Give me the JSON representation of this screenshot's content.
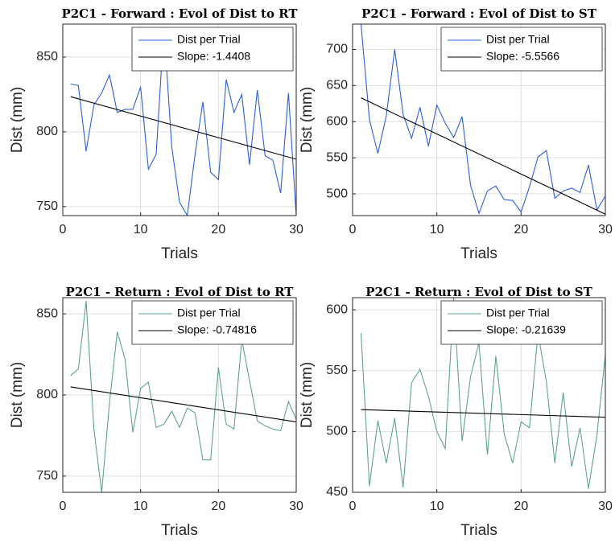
{
  "chart_data": [
    {
      "type": "line",
      "title": "P2C1 - Forward : Evol of Dist to RT",
      "xlabel": "Trials",
      "ylabel": "Dist (mm)",
      "x": [
        1,
        2,
        3,
        4,
        5,
        6,
        7,
        8,
        9,
        10,
        11,
        12,
        13,
        14,
        15,
        16,
        17,
        18,
        19,
        20,
        21,
        22,
        23,
        24,
        25,
        26,
        27,
        28,
        29,
        30
      ],
      "xlim": [
        0,
        30
      ],
      "xticks": [
        0,
        10,
        20,
        30
      ],
      "ylim": [
        744,
        872
      ],
      "yticks": [
        750,
        800,
        850
      ],
      "grid": true,
      "legend": "top-right",
      "series": [
        {
          "name": "Dist per Trial",
          "color": "#2b5fd9",
          "values": [
            832,
            831,
            787,
            818,
            826,
            838,
            813,
            815,
            815,
            830,
            775,
            785,
            870,
            790,
            753,
            744,
            785,
            820,
            773,
            768,
            835,
            813,
            825,
            778,
            828,
            784,
            781,
            759,
            826,
            744
          ]
        },
        {
          "name": "Slope: -1.4408",
          "color": "#000000",
          "x": [
            1,
            30
          ],
          "values": [
            823.5,
            781.7
          ]
        }
      ]
    },
    {
      "type": "line",
      "title": "P2C1 - Forward : Evol of Dist to ST",
      "xlabel": "Trials",
      "ylabel": "Dist (mm)",
      "x": [
        1,
        2,
        3,
        4,
        5,
        6,
        7,
        8,
        9,
        10,
        11,
        12,
        13,
        14,
        15,
        16,
        17,
        18,
        19,
        20,
        21,
        22,
        23,
        24,
        25,
        26,
        27,
        28,
        29,
        30
      ],
      "xlim": [
        0,
        30
      ],
      "xticks": [
        0,
        10,
        20,
        30
      ],
      "ylim": [
        470,
        735
      ],
      "yticks": [
        500,
        550,
        600,
        650,
        700
      ],
      "grid": true,
      "legend": "top-right",
      "series": [
        {
          "name": "Dist per Trial",
          "color": "#2b5fd9",
          "values": [
            735,
            603,
            556,
            608,
            700,
            610,
            577,
            620,
            566,
            623,
            598,
            578,
            607,
            512,
            473,
            504,
            511,
            492,
            491,
            475,
            510,
            551,
            560,
            494,
            504,
            508,
            502,
            540,
            478,
            497
          ]
        },
        {
          "name": "Slope: -5.5566",
          "color": "#000000",
          "x": [
            1,
            30
          ],
          "values": [
            633,
            472
          ]
        }
      ]
    },
    {
      "type": "line",
      "title": "P2C1 - Return : Evol of Dist to RT",
      "xlabel": "Trials",
      "ylabel": "Dist (mm)",
      "x": [
        1,
        2,
        3,
        4,
        5,
        6,
        7,
        8,
        9,
        10,
        11,
        12,
        13,
        14,
        15,
        16,
        17,
        18,
        19,
        20,
        21,
        22,
        23,
        24,
        25,
        26,
        27,
        28,
        29,
        30
      ],
      "xlim": [
        0,
        30
      ],
      "xticks": [
        0,
        10,
        20,
        30
      ],
      "ylim": [
        740,
        860
      ],
      "yticks": [
        750,
        800,
        850
      ],
      "grid": true,
      "legend": "top-right",
      "series": [
        {
          "name": "Dist per Trial",
          "color": "#5fa58a",
          "values": [
            812,
            816,
            858,
            779,
            740,
            795,
            839,
            822,
            777,
            804,
            808,
            780,
            782,
            790,
            780,
            792,
            789,
            760,
            760,
            817,
            782,
            779,
            834,
            809,
            784,
            781,
            779,
            778,
            796,
            785
          ]
        },
        {
          "name": "Slope: -0.74816",
          "color": "#000000",
          "x": [
            1,
            30
          ],
          "values": [
            805,
            783.4
          ]
        }
      ]
    },
    {
      "type": "line",
      "title": "P2C1 - Return : Evol of Dist to ST",
      "xlabel": "Trials",
      "ylabel": "Dist (mm)",
      "x": [
        1,
        2,
        3,
        4,
        5,
        6,
        7,
        8,
        9,
        10,
        11,
        12,
        13,
        14,
        15,
        16,
        17,
        18,
        19,
        20,
        21,
        22,
        23,
        24,
        25,
        26,
        27,
        28,
        29,
        30
      ],
      "xlim": [
        0,
        30
      ],
      "xticks": [
        0,
        10,
        20,
        30
      ],
      "ylim": [
        450,
        610
      ],
      "yticks": [
        450,
        500,
        550,
        600
      ],
      "grid": true,
      "legend": "top-right",
      "series": [
        {
          "name": "Dist per Trial",
          "color": "#5fa58a",
          "values": [
            581,
            455,
            509,
            474,
            511,
            454,
            540,
            551,
            529,
            500,
            486,
            610,
            492,
            545,
            573,
            481,
            562,
            498,
            474,
            508,
            503,
            581,
            541,
            474,
            532,
            471,
            503,
            453,
            497,
            563
          ]
        },
        {
          "name": "Slope: -0.21639",
          "color": "#000000",
          "x": [
            1,
            30
          ],
          "values": [
            518,
            511.7
          ]
        }
      ]
    }
  ]
}
